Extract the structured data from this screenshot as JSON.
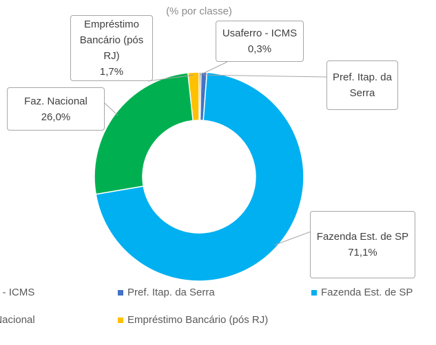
{
  "chart_data": {
    "type": "doughnut",
    "subtitle": "(% por classe)",
    "categories": [
      "Usaferro - ICMS",
      "Pref. Itap. da Serra",
      "Fazenda Est. de SP",
      "Faz. Nacional",
      "Empréstimo Bancário (pós RJ)"
    ],
    "values": [
      0.3,
      0.9,
      71.1,
      26.0,
      1.7
    ],
    "value_labels": [
      "0,3%",
      null,
      "71,1%",
      "26,0%",
      "1,7%"
    ],
    "colors": [
      "#8c8c8c",
      "#4472c4",
      "#00b0f0",
      "#00b050",
      "#ffc000"
    ],
    "legend": "bottom"
  }
}
